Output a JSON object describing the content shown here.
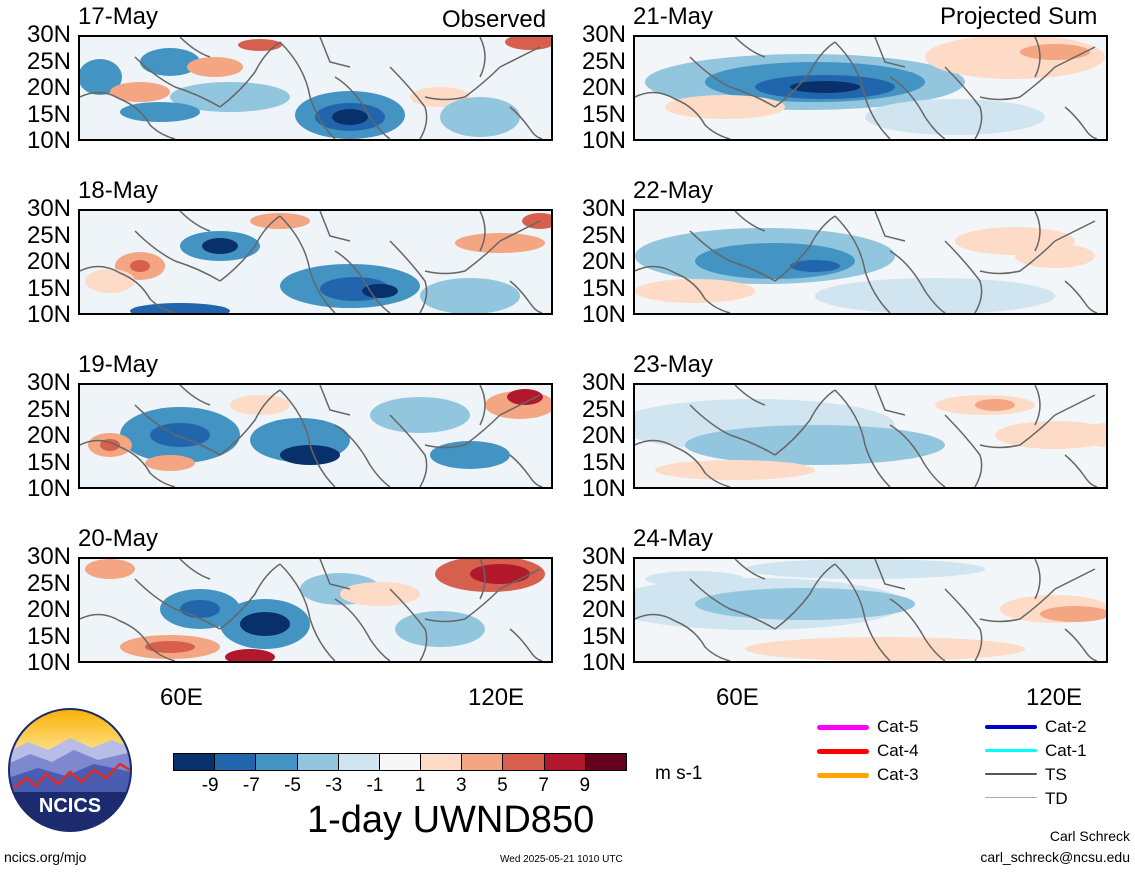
{
  "columns": {
    "observed_label": "Observed",
    "projected_label": "Projected Sum"
  },
  "panels": [
    {
      "date": "17-May",
      "column": "observed"
    },
    {
      "date": "18-May",
      "column": "observed"
    },
    {
      "date": "19-May",
      "column": "observed"
    },
    {
      "date": "20-May",
      "column": "observed"
    },
    {
      "date": "21-May",
      "column": "projected"
    },
    {
      "date": "22-May",
      "column": "projected"
    },
    {
      "date": "23-May",
      "column": "projected"
    },
    {
      "date": "24-May",
      "column": "projected"
    }
  ],
  "lat_labels": [
    "30N",
    "25N",
    "20N",
    "15N",
    "10N"
  ],
  "lon_labels": [
    "60E",
    "120E"
  ],
  "colorbar": {
    "title": "1-day UWND850",
    "units": "m s-1",
    "labels": [
      "-9",
      "-7",
      "-5",
      "-3",
      "-1",
      "1",
      "3",
      "5",
      "7",
      "9"
    ],
    "colors": [
      "#08306b",
      "#2166ac",
      "#4393c3",
      "#92c5de",
      "#d1e5f0",
      "#f7f7f7",
      "#fddbc7",
      "#f4a582",
      "#d6604d",
      "#b2182b",
      "#67001f"
    ]
  },
  "legend": [
    {
      "label": "Cat-5",
      "color": "#ff00ff"
    },
    {
      "label": "Cat-4",
      "color": "#ff0000"
    },
    {
      "label": "Cat-3",
      "color": "#ffa500"
    },
    {
      "label": "Cat-2",
      "color": "#0000cc"
    },
    {
      "label": "Cat-1",
      "color": "#00ffff"
    },
    {
      "label": "TS",
      "color": "#555555"
    },
    {
      "label": "TD",
      "color": "#aaaaaa"
    }
  ],
  "logo": {
    "text": "NCICS"
  },
  "footer": {
    "website": "ncics.org/mjo",
    "timestamp": "Wed 2025-05-21 1010 UTC",
    "author": "Carl Schreck",
    "email": "carl_schreck@ncsu.edu"
  }
}
